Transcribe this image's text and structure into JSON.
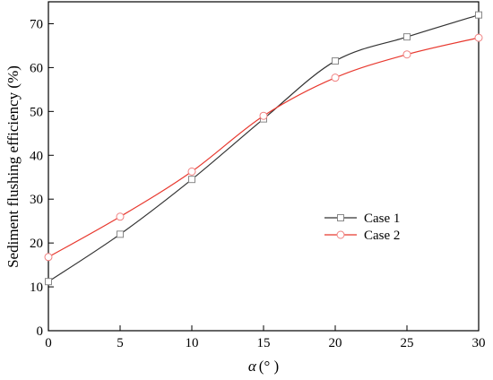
{
  "chart_data": {
    "type": "line",
    "xlabel_symbol": "α",
    "xlabel_unit": "(° )",
    "ylabel": "Sediment flushing efficiency (%)",
    "xlim": [
      0,
      30
    ],
    "ylim": [
      0,
      75
    ],
    "x_ticks": [
      0,
      5,
      10,
      15,
      20,
      25,
      30
    ],
    "y_ticks": [
      0,
      10,
      20,
      30,
      40,
      50,
      60,
      70
    ],
    "grid": false,
    "legend_position": "center-right",
    "series": [
      {
        "name": "Case 1",
        "marker": "square",
        "color": "#333333",
        "x": [
          0,
          5,
          10,
          15,
          20,
          25,
          30
        ],
        "y": [
          11.2,
          22.0,
          34.5,
          48.3,
          61.5,
          67.0,
          72.0
        ]
      },
      {
        "name": "Case 2",
        "marker": "circle",
        "color": "#e8392f",
        "x": [
          0,
          5,
          10,
          15,
          20,
          25,
          30
        ],
        "y": [
          16.8,
          26.0,
          36.3,
          49.0,
          57.7,
          63.0,
          66.8
        ]
      }
    ]
  }
}
